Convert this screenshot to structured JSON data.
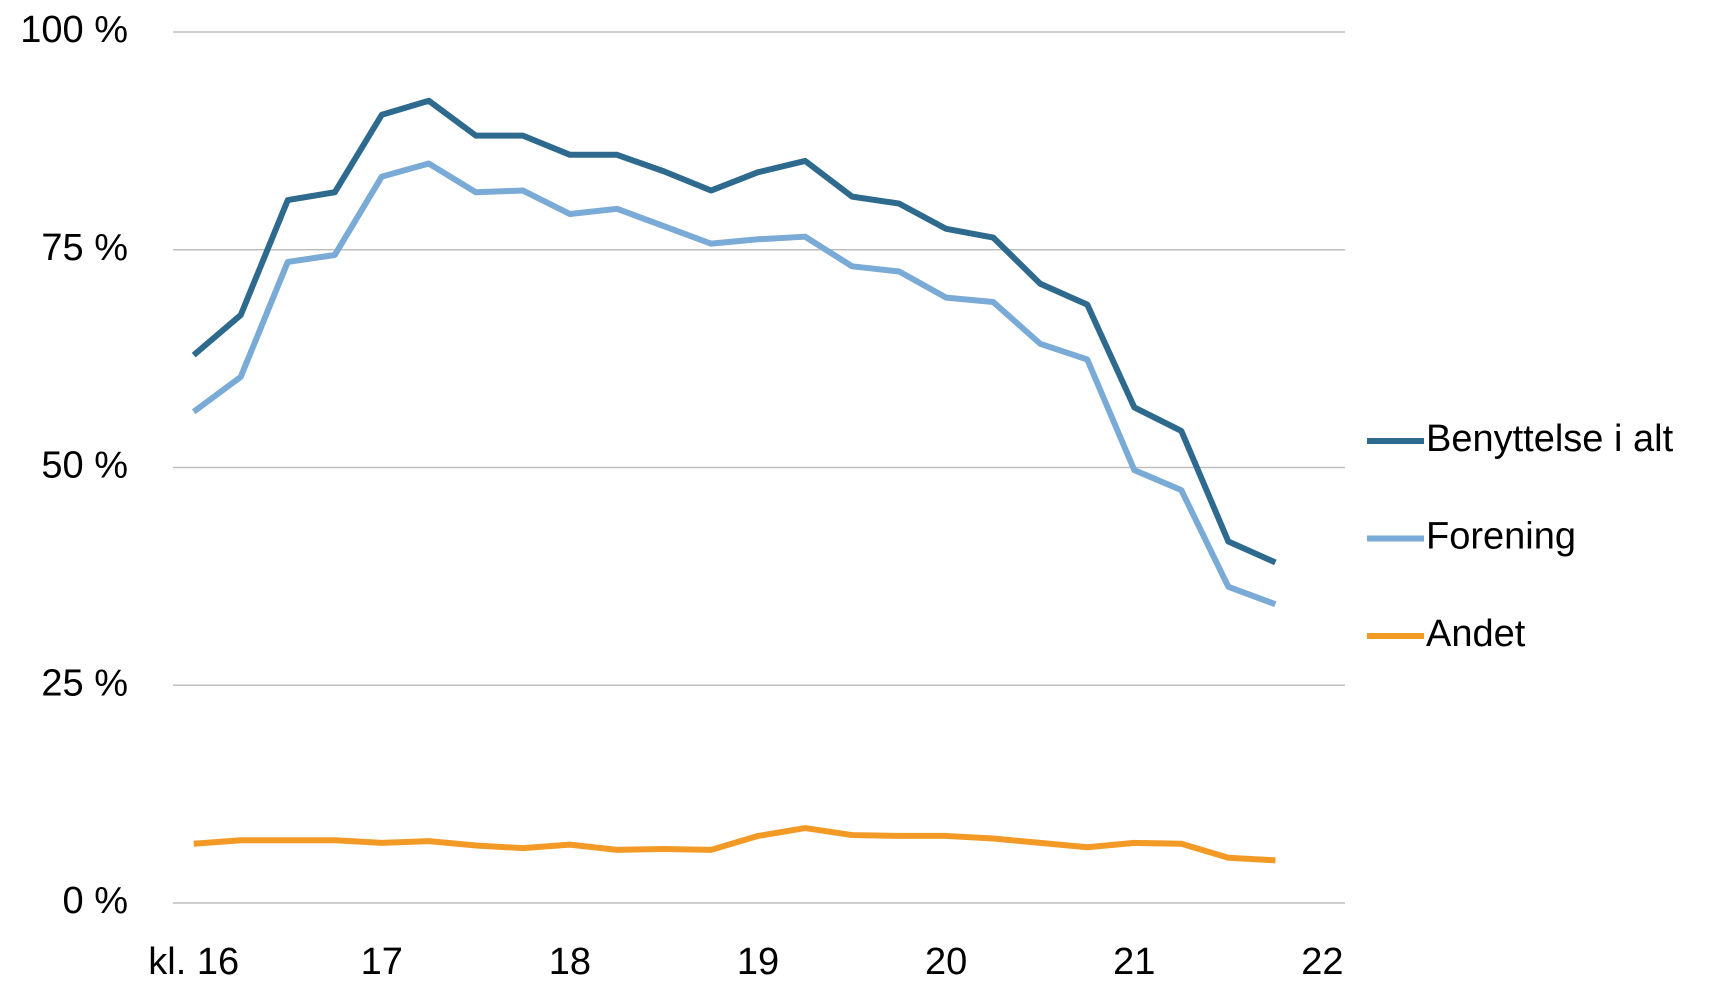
{
  "chart_data": {
    "type": "line",
    "x": [
      16,
      16.25,
      16.5,
      16.75,
      17,
      17.25,
      17.5,
      17.75,
      18,
      18.25,
      18.5,
      18.75,
      19,
      19.25,
      19.5,
      19.75,
      20,
      20.25,
      20.5,
      20.75,
      21,
      21.25,
      21.5,
      21.75
    ],
    "series": [
      {
        "name": "Benyttelse i alt",
        "color": "#2e6a8e",
        "values": [
          62.9,
          67.5,
          80.7,
          81.6,
          90.5,
          92.1,
          88.1,
          88.1,
          85.9,
          85.9,
          84.0,
          81.8,
          83.9,
          85.2,
          81.1,
          80.3,
          77.4,
          76.4,
          71.1,
          68.7,
          56.9,
          54.2,
          41.5,
          39.1
        ]
      },
      {
        "name": "Forening",
        "color": "#7aaad6",
        "values": [
          56.4,
          60.4,
          73.6,
          74.4,
          83.4,
          84.9,
          81.6,
          81.8,
          79.1,
          79.7,
          77.7,
          75.7,
          76.2,
          76.5,
          73.1,
          72.5,
          69.5,
          69.0,
          64.2,
          62.4,
          49.7,
          47.4,
          36.3,
          34.3
        ]
      },
      {
        "name": "Andet",
        "color": "#f39a26",
        "values": [
          6.8,
          7.2,
          7.2,
          7.2,
          6.9,
          7.1,
          6.6,
          6.3,
          6.7,
          6.1,
          6.2,
          6.1,
          7.7,
          8.6,
          7.8,
          7.7,
          7.7,
          7.4,
          6.9,
          6.4,
          6.9,
          6.8,
          5.2,
          4.9
        ]
      }
    ],
    "xlim": [
      15.89,
      22.12
    ],
    "xticks": [
      {
        "value": 16,
        "label": "kl. 16"
      },
      17,
      18,
      19,
      20,
      21,
      22
    ],
    "ylim": [
      0,
      100
    ],
    "yticks": [
      {
        "value": 0,
        "label": "0 %"
      },
      {
        "value": 25,
        "label": "25 %"
      },
      {
        "value": 50,
        "label": "50 %"
      },
      {
        "value": 75,
        "label": "75 %"
      },
      {
        "value": 100,
        "label": "100 %"
      }
    ],
    "grid": true,
    "legend": "right"
  }
}
